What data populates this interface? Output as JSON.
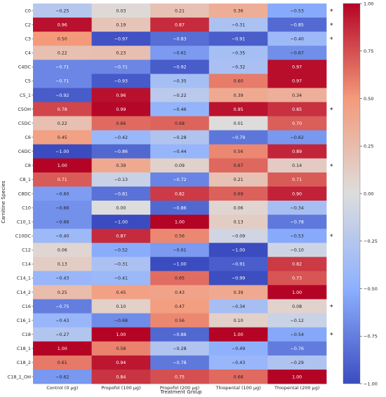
{
  "chart_data": {
    "type": "heatmap",
    "xlabel": "Treatment Group",
    "ylabel": "Carnitine Species",
    "columns": [
      "Control (0 µg)",
      "Propofol (100 µg)",
      "Propofol (200 µg)",
      "Thiopental (100 µg)",
      "Thiopental (200 µg)"
    ],
    "rows": [
      "C0",
      "C2",
      "C3",
      "C4",
      "C4DC",
      "C5",
      "C5_1",
      "C5OH",
      "C5DC",
      "C6",
      "C6DC",
      "C8",
      "C8_1",
      "C8DC",
      "C10",
      "C10_1",
      "C10DC",
      "C12",
      "C14",
      "C14_1",
      "C14_2",
      "C16",
      "C16_1",
      "C18",
      "C18_1",
      "C18_2",
      "C18_1_OH"
    ],
    "values": [
      [
        -0.25,
        0.03,
        0.21,
        0.36,
        -0.53
      ],
      [
        0.96,
        0.19,
        0.87,
        -0.31,
        -0.85
      ],
      [
        0.5,
        -0.97,
        -0.83,
        -0.91,
        -0.4
      ],
      [
        0.22,
        0.23,
        -0.61,
        -0.35,
        -0.67
      ],
      [
        -0.71,
        -0.71,
        -0.92,
        -0.32,
        0.97
      ],
      [
        -0.71,
        -0.93,
        -0.35,
        0.6,
        0.97
      ],
      [
        -0.92,
        0.96,
        -0.22,
        0.39,
        0.34
      ],
      [
        0.78,
        0.99,
        -0.46,
        0.95,
        0.85
      ],
      [
        0.22,
        0.66,
        0.68,
        0.01,
        0.7
      ],
      [
        0.45,
        -0.42,
        -0.28,
        -0.79,
        -0.62
      ],
      [
        -1.0,
        -0.86,
        -0.44,
        0.56,
        0.89
      ],
      [
        1.0,
        0.39,
        0.09,
        0.67,
        0.14
      ],
      [
        0.71,
        -0.13,
        -0.72,
        0.21,
        0.71
      ],
      [
        -0.6,
        -0.81,
        0.82,
        0.69,
        0.9
      ],
      [
        -0.66,
        0.0,
        -0.86,
        0.06,
        -0.34
      ],
      [
        -0.66,
        -1.0,
        1.0,
        0.13,
        -0.78
      ],
      [
        -0.4,
        0.87,
        0.56,
        -0.09,
        -0.53
      ],
      [
        0.06,
        -0.52,
        -0.61,
        -1.0,
        -0.1
      ],
      [
        0.13,
        -0.31,
        -1.0,
        -0.91,
        0.82
      ],
      [
        -0.43,
        -0.41,
        0.65,
        -0.99,
        0.73
      ],
      [
        0.25,
        0.45,
        0.43,
        0.39,
        1.0
      ],
      [
        -0.75,
        0.1,
        0.47,
        -0.34,
        0.08
      ],
      [
        -0.43,
        -0.68,
        0.56,
        0.1,
        -0.12
      ],
      [
        -0.27,
        1.0,
        -0.86,
        1.0,
        -0.54
      ],
      [
        1.0,
        0.58,
        -0.28,
        -0.49,
        -0.76
      ],
      [
        0.61,
        0.94,
        -0.78,
        -0.43,
        -0.29
      ],
      [
        -0.62,
        0.84,
        0.75,
        0.66,
        1.0
      ]
    ],
    "value_labels": [
      [
        "−0.25",
        "0.03",
        "0.21",
        "0.36",
        "−0.53"
      ],
      [
        "0.96",
        "0.19",
        "0.87",
        "−0.31",
        "−0.85"
      ],
      [
        "0.50",
        "−0.97",
        "−0.83",
        "−0.91",
        "−0.40"
      ],
      [
        "0.22",
        "0.23",
        "−0.61",
        "−0.35",
        "−0.67"
      ],
      [
        "−0.71",
        "−0.71",
        "−0.92",
        "−0.32",
        "0.97"
      ],
      [
        "−0.71",
        "−0.93",
        "−0.35",
        "0.60",
        "0.97"
      ],
      [
        "−0.92",
        "0.96",
        "−0.22",
        "0.39",
        "0.34"
      ],
      [
        "0.78",
        "0.99",
        "−0.46",
        "0.95",
        "0.85"
      ],
      [
        "0.22",
        "0.66",
        "0.68",
        "0.01",
        "0.70"
      ],
      [
        "0.45",
        "−0.42",
        "−0.28",
        "−0.79",
        "−0.62"
      ],
      [
        "−1.00",
        "−0.86",
        "−0.44",
        "0.56",
        "0.89"
      ],
      [
        "1.00",
        "0.39",
        "0.09",
        "0.67",
        "0.14"
      ],
      [
        "0.71",
        "−0.13",
        "−0.72",
        "0.21",
        "0.71"
      ],
      [
        "−0.60",
        "−0.81",
        "0.82",
        "0.69",
        "0.90"
      ],
      [
        "−0.66",
        "0.00",
        "−0.86",
        "0.06",
        "−0.34"
      ],
      [
        "−0.66",
        "−1.00",
        "1.00",
        "0.13",
        "−0.78"
      ],
      [
        "−0.40",
        "0.87",
        "0.56",
        "−0.09",
        "−0.53"
      ],
      [
        "0.06",
        "−0.52",
        "−0.61",
        "−1.00",
        "−0.10"
      ],
      [
        "0.13",
        "−0.31",
        "−1.00",
        "−0.91",
        "0.82"
      ],
      [
        "−0.43",
        "−0.41",
        "0.65",
        "−0.99",
        "0.73"
      ],
      [
        "0.25",
        "0.45",
        "0.43",
        "0.39",
        "1.00"
      ],
      [
        "−0.75",
        "0.10",
        "0.47",
        "−0.34",
        "0.08"
      ],
      [
        "−0.43",
        "−0.68",
        "0.56",
        "0.10",
        "−0.12"
      ],
      [
        "−0.27",
        "1.00",
        "−0.86",
        "1.00",
        "−0.54"
      ],
      [
        "1.00",
        "0.58",
        "−0.28",
        "−0.49",
        "−0.76"
      ],
      [
        "0.61",
        "0.94",
        "−0.78",
        "−0.43",
        "−0.29"
      ],
      [
        "−0.62",
        "0.84",
        "0.75",
        "0.66",
        "1.00"
      ]
    ],
    "significance_marker": "*",
    "significant_rows": [
      "C0",
      "C2",
      "C3",
      "C5OH",
      "C8",
      "C10DC",
      "C16",
      "C18"
    ],
    "colorscale": {
      "name": "coolwarm",
      "range": [
        -1.0,
        1.0
      ],
      "ticks": [
        1.0,
        0.75,
        0.5,
        0.25,
        0.0,
        -0.25,
        -0.5,
        -0.75,
        -1.0
      ],
      "tick_labels": [
        "1.00",
        "0.75",
        "0.50",
        "0.25",
        "0.00",
        "−0.25",
        "−0.50",
        "−0.75",
        "−1.00"
      ]
    },
    "grid": false,
    "legend": "colorbar right"
  }
}
